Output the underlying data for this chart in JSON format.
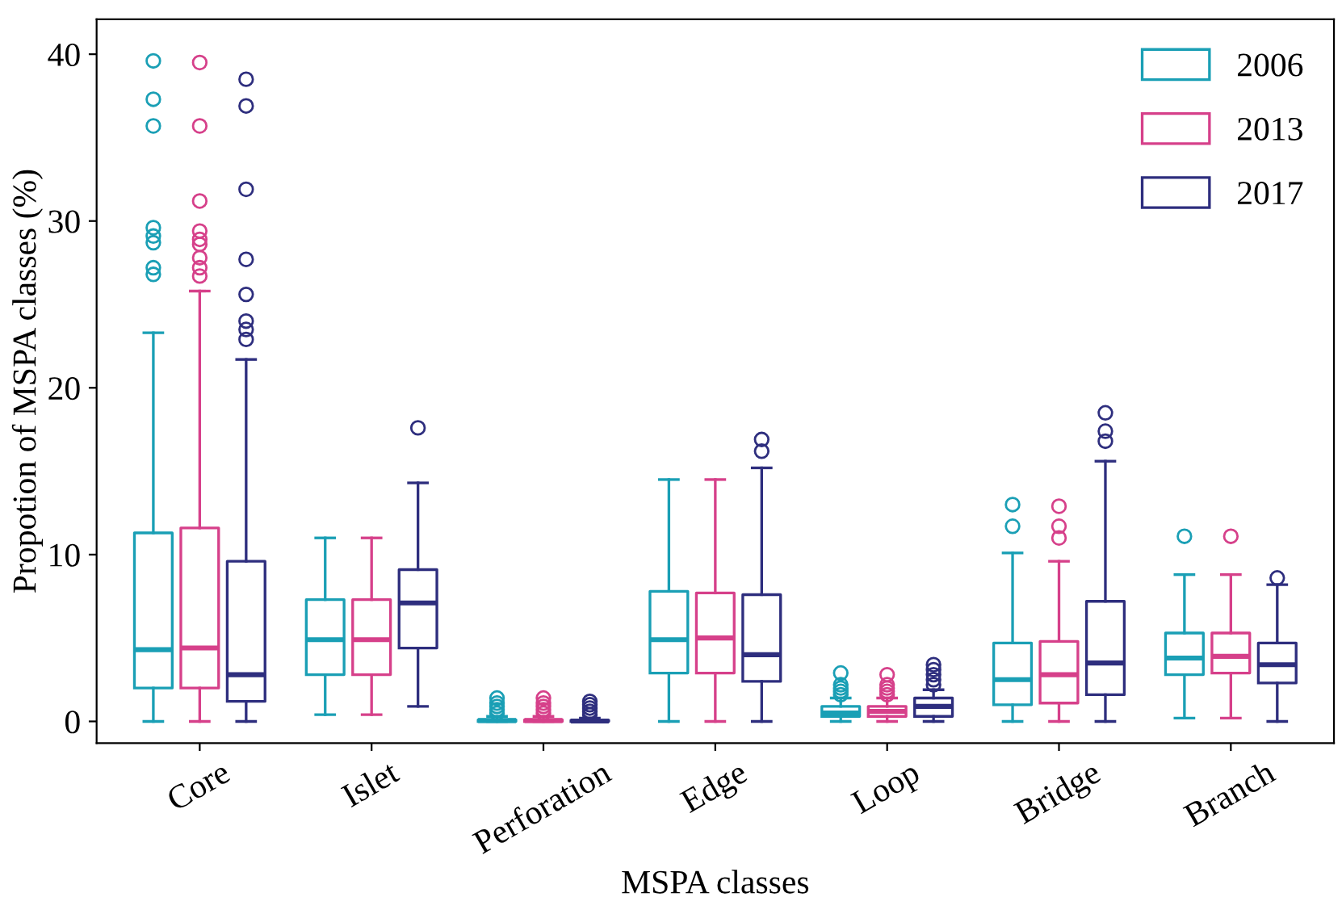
{
  "chart_data": {
    "type": "box",
    "xlabel": "MSPA classes",
    "ylabel": "Propotion of MSPA classes (%)",
    "categories": [
      "Core",
      "Islet",
      "Perforation",
      "Edge",
      "Loop",
      "Bridge",
      "Branch"
    ],
    "ylim": [
      -1.3,
      42.1
    ],
    "yticks": [
      0,
      10,
      20,
      30,
      40
    ],
    "grid": false,
    "legend": "top right",
    "marker": "circle",
    "series": [
      {
        "name": "2006",
        "color": "#1a9fb5",
        "boxes": [
          {
            "low": 0,
            "q1": 2.0,
            "median": 4.3,
            "q3": 11.3,
            "high": 23.3,
            "outliers": [
              26.8,
              27.2,
              28.7,
              29.1,
              29.6,
              35.7,
              37.3,
              39.6
            ]
          },
          {
            "low": 0.4,
            "q1": 2.8,
            "median": 4.9,
            "q3": 7.3,
            "high": 11.0
          },
          {
            "low": 0,
            "q1": 0,
            "median": 0.05,
            "q3": 0.1,
            "high": 0.3,
            "outliers": [
              0.5,
              0.7,
              0.9,
              1.1,
              1.4
            ]
          },
          {
            "low": 0,
            "q1": 2.9,
            "median": 4.9,
            "q3": 7.8,
            "high": 14.5
          },
          {
            "low": 0,
            "q1": 0.3,
            "median": 0.5,
            "q3": 0.9,
            "high": 1.4,
            "outliers": [
              1.6,
              1.8,
              2.0,
              2.2,
              2.9
            ]
          },
          {
            "low": 0,
            "q1": 1.0,
            "median": 2.5,
            "q3": 4.7,
            "high": 10.1,
            "outliers": [
              11.7,
              13.0
            ]
          },
          {
            "low": 0.2,
            "q1": 2.8,
            "median": 3.8,
            "q3": 5.3,
            "high": 8.8,
            "outliers": [
              11.1
            ]
          }
        ]
      },
      {
        "name": "2013",
        "color": "#d6408a",
        "boxes": [
          {
            "low": 0,
            "q1": 2.0,
            "median": 4.4,
            "q3": 11.6,
            "high": 25.8,
            "outliers": [
              26.7,
              27.2,
              27.8,
              28.6,
              28.9,
              29.4,
              31.2,
              35.7,
              39.5
            ]
          },
          {
            "low": 0.4,
            "q1": 2.8,
            "median": 4.9,
            "q3": 7.3,
            "high": 11.0
          },
          {
            "low": 0,
            "q1": 0,
            "median": 0.05,
            "q3": 0.1,
            "high": 0.3,
            "outliers": [
              0.5,
              0.7,
              0.9,
              1.1,
              1.4
            ]
          },
          {
            "low": 0,
            "q1": 2.9,
            "median": 5.0,
            "q3": 7.7,
            "high": 14.5
          },
          {
            "low": 0,
            "q1": 0.3,
            "median": 0.6,
            "q3": 0.9,
            "high": 1.4,
            "outliers": [
              1.6,
              1.8,
              2.0,
              2.2,
              2.8
            ]
          },
          {
            "low": 0,
            "q1": 1.1,
            "median": 2.8,
            "q3": 4.8,
            "high": 9.6,
            "outliers": [
              11.0,
              11.7,
              12.9
            ]
          },
          {
            "low": 0.2,
            "q1": 2.9,
            "median": 3.9,
            "q3": 5.3,
            "high": 8.8,
            "outliers": [
              11.1
            ]
          }
        ]
      },
      {
        "name": "2017",
        "color": "#2e2e7e",
        "boxes": [
          {
            "low": 0,
            "q1": 1.2,
            "median": 2.8,
            "q3": 9.6,
            "high": 21.7,
            "outliers": [
              22.9,
              23.5,
              24.0,
              25.6,
              27.7,
              31.9,
              36.9,
              38.5
            ]
          },
          {
            "low": 0.9,
            "q1": 4.4,
            "median": 7.1,
            "q3": 9.1,
            "high": 14.3,
            "outliers": [
              17.6
            ]
          },
          {
            "low": 0,
            "q1": 0,
            "median": 0.02,
            "q3": 0.08,
            "high": 0.2,
            "outliers": [
              0.4,
              0.6,
              0.8,
              1.0,
              1.2
            ]
          },
          {
            "low": 0,
            "q1": 2.4,
            "median": 4.0,
            "q3": 7.6,
            "high": 15.2,
            "outliers": [
              16.2,
              16.9
            ]
          },
          {
            "low": 0,
            "q1": 0.3,
            "median": 0.9,
            "q3": 1.4,
            "high": 1.9,
            "outliers": [
              2.2,
              2.5,
              2.8,
              3.1,
              3.4
            ]
          },
          {
            "low": 0,
            "q1": 1.6,
            "median": 3.5,
            "q3": 7.2,
            "high": 15.6,
            "outliers": [
              16.8,
              17.4,
              18.5
            ]
          },
          {
            "low": 0,
            "q1": 2.3,
            "median": 3.4,
            "q3": 4.7,
            "high": 8.2,
            "outliers": [
              8.6
            ]
          }
        ]
      }
    ]
  }
}
